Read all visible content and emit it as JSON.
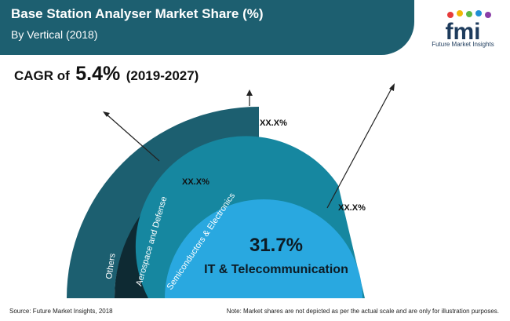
{
  "header": {
    "title": "Base Station Analyser Market Share (%)",
    "subtitle": "By Vertical (2018)"
  },
  "logo": {
    "mark": "fmi",
    "tagline": "Future Market Insights",
    "dot_colors": [
      "#e63b3b",
      "#f2b705",
      "#5bb846",
      "#1f8fd6",
      "#8b3fa8"
    ]
  },
  "cagr": {
    "label": "CAGR of",
    "value": "5.4%",
    "period": "(2019-2027)"
  },
  "chart_data": {
    "type": "pie",
    "title": "Base Station Analyser Market Share (%)",
    "subtitle": "By Vertical (2018)",
    "segments": [
      {
        "label": "IT & Telecommunication",
        "value_label": "31.7%",
        "value": 31.7,
        "color": "#29a8e0"
      },
      {
        "label": "Semiconductors & Electronics",
        "value_label": "XX.X%",
        "value": null,
        "color": "#1687a0"
      },
      {
        "label": "Aerospace and Defense",
        "value_label": "XX.X%",
        "value": null,
        "color": "#0e2a33"
      },
      {
        "label": "Others",
        "value_label": "XX.X%",
        "value": null,
        "color": "#1c5f70"
      }
    ],
    "legend": "none"
  },
  "footer": {
    "source": "Source: Future Market Insights, 2018",
    "note": "Note: Market shares are not depicted as per the actual scale and are only for illustration purposes."
  }
}
